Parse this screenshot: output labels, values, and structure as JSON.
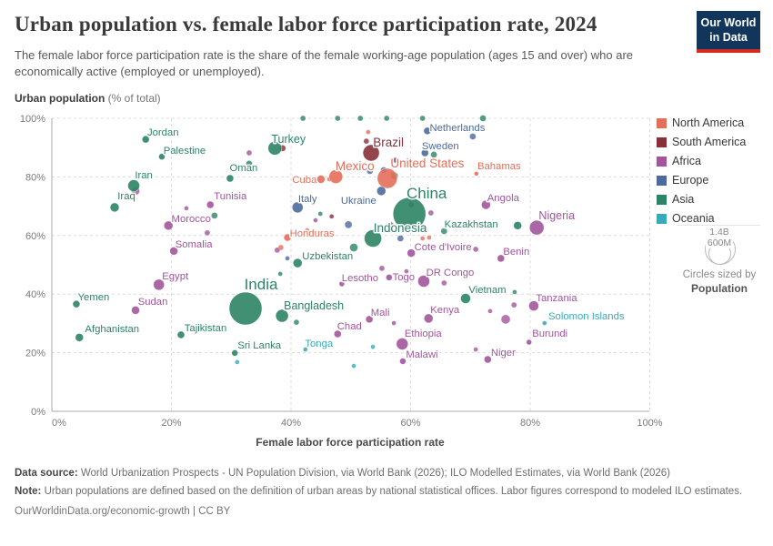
{
  "header": {
    "title": "Urban population vs. female labor force participation rate, 2024",
    "subtitle": "The female labor force participation rate is the share of the female working-age population (ages 15 and over) who are economically active (employed or unemployed)."
  },
  "logo": {
    "line1": "Our World",
    "line2": "in Data"
  },
  "axes": {
    "y_title_bold": "Urban population",
    "y_title_rest": " (% of total)",
    "x_title": "Female labor force participation rate"
  },
  "legend": {
    "items": [
      {
        "label": "North America",
        "color": "#e56e5a"
      },
      {
        "label": "South America",
        "color": "#883039"
      },
      {
        "label": "Africa",
        "color": "#a2559c"
      },
      {
        "label": "Europe",
        "color": "#4c6a9c"
      },
      {
        "label": "Asia",
        "color": "#2c8465"
      },
      {
        "label": "Oceania",
        "color": "#38aaba"
      }
    ]
  },
  "size_legend": {
    "outer_label": "1.4B",
    "inner_label": "600M",
    "caption_line1": "Circles sized by",
    "caption_line2": "Population"
  },
  "footer": {
    "source_label": "Data source:",
    "source_text": " World Urbanization Prospects - UN Population Division, via World Bank (2026); ILO Modelled Estimates, via World Bank (2026)",
    "note_label": "Note:",
    "note_text": " Urban populations are defined based on the definition of urban areas by national statistical offices. Labor figures correspond to modeled ILO estimates.",
    "link_text": "OurWorldinData.org/economic-growth | CC BY"
  },
  "chart_data": {
    "type": "scatter",
    "title": "Urban population vs. female labor force participation rate, 2024",
    "xlabel": "Female labor force participation rate",
    "ylabel": "Urban population (% of total)",
    "xlim": [
      0,
      100
    ],
    "ylim": [
      0,
      100
    ],
    "x_ticks": [
      {
        "v": 0,
        "label": "0%"
      },
      {
        "v": 20,
        "label": "20%"
      },
      {
        "v": 40,
        "label": "40%"
      },
      {
        "v": 60,
        "label": "60%"
      },
      {
        "v": 80,
        "label": "80%"
      },
      {
        "v": 100,
        "label": "100%"
      }
    ],
    "y_ticks": [
      {
        "v": 0,
        "label": "0%"
      },
      {
        "v": 20,
        "label": "20%"
      },
      {
        "v": 40,
        "label": "40%"
      },
      {
        "v": 60,
        "label": "60%"
      },
      {
        "v": 80,
        "label": "80%"
      },
      {
        "v": 100,
        "label": "100%"
      }
    ],
    "grid": "dashed",
    "legend_position": "right",
    "continent_colors": {
      "na": "#e56e5a",
      "sa": "#883039",
      "af": "#a2559c",
      "eu": "#4c6a9c",
      "as": "#2c8465",
      "oc": "#38aaba"
    },
    "points": [
      {
        "name": "Jordan",
        "x": 15.7,
        "y": 92.8,
        "r": 4,
        "c": "as",
        "ox": 19,
        "oy": -8
      },
      {
        "name": "Palestine",
        "x": 18.4,
        "y": 86.9,
        "r": 3.5,
        "c": "as",
        "ox": 25,
        "oy": -7
      },
      {
        "name": "Iran",
        "x": 13.7,
        "y": 77.0,
        "r": 6.5,
        "c": "as",
        "ox": 11,
        "oy": -12
      },
      {
        "name": "Iraq",
        "x": 10.5,
        "y": 69.6,
        "r": 5,
        "c": "as",
        "ox": 13,
        "oy": -13
      },
      {
        "name": "Oman",
        "x": 29.8,
        "y": 79.5,
        "r": 4,
        "c": "as",
        "ox": 15,
        "oy": -12
      },
      {
        "name": "Turkey",
        "x": 37.3,
        "y": 89.8,
        "r": 7.5,
        "c": "as",
        "ox": 15,
        "oy": -10,
        "ls": 12.5
      },
      {
        "name": "Tunisia",
        "x": 26.5,
        "y": 70.5,
        "r": 4,
        "c": "af",
        "ox": 22,
        "oy": -10
      },
      {
        "name": "Morocco",
        "x": 19.5,
        "y": 63.4,
        "r": 5,
        "c": "af",
        "ox": 25,
        "oy": -8
      },
      {
        "name": "Somalia",
        "x": 20.4,
        "y": 54.7,
        "r": 4.5,
        "c": "af",
        "ox": 22,
        "oy": -8
      },
      {
        "name": "Egypt",
        "x": 17.9,
        "y": 43.2,
        "r": 6,
        "c": "af",
        "ox": 18,
        "oy": -10
      },
      {
        "name": "Yemen",
        "x": 4.1,
        "y": 36.6,
        "r": 4,
        "c": "as",
        "ox": 19,
        "oy": -8
      },
      {
        "name": "Sudan",
        "x": 14.0,
        "y": 34.5,
        "r": 4.5,
        "c": "af",
        "ox": 19,
        "oy": -10
      },
      {
        "name": "Afghanistan",
        "x": 4.6,
        "y": 25.2,
        "r": 4.5,
        "c": "as",
        "ox": 36,
        "oy": -10
      },
      {
        "name": "Tajikistan",
        "x": 21.6,
        "y": 26.1,
        "r": 4,
        "c": "as",
        "ox": 27,
        "oy": -8
      },
      {
        "name": "India",
        "x": 32.4,
        "y": 35.1,
        "r": 18,
        "c": "as",
        "ox": 17,
        "oy": -25,
        "ls": 17
      },
      {
        "name": "Sri Lanka",
        "x": 30.6,
        "y": 19.9,
        "r": 3.5,
        "c": "as",
        "ox": 27,
        "oy": -9
      },
      {
        "name": "Bangladesh",
        "x": 38.5,
        "y": 32.6,
        "r": 7,
        "c": "as",
        "ox": 35,
        "oy": -11,
        "ls": 12.5
      },
      {
        "name": "Tonga",
        "x": 42.4,
        "y": 21.1,
        "r": 2.5,
        "c": "oc",
        "ox": 15,
        "oy": -7
      },
      {
        "name": "Chad",
        "x": 47.8,
        "y": 26.4,
        "r": 4,
        "c": "af",
        "ox": 13,
        "oy": -9
      },
      {
        "name": "Mali",
        "x": 53.1,
        "y": 31.4,
        "r": 4,
        "c": "af",
        "ox": 12,
        "oy": -8
      },
      {
        "name": "Ethiopia",
        "x": 58.6,
        "y": 23.0,
        "r": 6.5,
        "c": "af",
        "ox": 23,
        "oy": -12
      },
      {
        "name": "Malawi",
        "x": 58.7,
        "y": 17.1,
        "r": 3.5,
        "c": "af",
        "ox": 21,
        "oy": -8
      },
      {
        "name": "Niger",
        "x": 72.9,
        "y": 17.7,
        "r": 4,
        "c": "af",
        "ox": 17,
        "oy": -8
      },
      {
        "name": "Kenya",
        "x": 63.0,
        "y": 31.7,
        "r": 5,
        "c": "af",
        "ox": 18,
        "oy": -10
      },
      {
        "name": "Vietnam",
        "x": 69.2,
        "y": 38.5,
        "r": 5.5,
        "c": "as",
        "ox": 24,
        "oy": -10
      },
      {
        "name": "Tanzania",
        "x": 80.6,
        "y": 36.0,
        "r": 5.5,
        "c": "af",
        "ox": 25,
        "oy": -9
      },
      {
        "name": "Solomon Islands",
        "x": 82.4,
        "y": 30.1,
        "r": 2.5,
        "c": "oc",
        "ox": 46,
        "oy": -8
      },
      {
        "name": "Burundi",
        "x": 79.8,
        "y": 23.6,
        "r": 3,
        "c": "af",
        "ox": 23,
        "oy": -10
      },
      {
        "name": "DR Congo",
        "x": 62.2,
        "y": 44.4,
        "r": 6.5,
        "c": "af",
        "ox": 29,
        "oy": -10
      },
      {
        "name": "Lesotho",
        "x": 48.5,
        "y": 43.5,
        "r": 3,
        "c": "af",
        "ox": 20,
        "oy": -7
      },
      {
        "name": "Togo",
        "x": 56.4,
        "y": 45.7,
        "r": 3.5,
        "c": "af",
        "ox": 16,
        "oy": -1
      },
      {
        "name": "Uzbekistan",
        "x": 41.1,
        "y": 50.6,
        "r": 5,
        "c": "as",
        "ox": 33,
        "oy": -8
      },
      {
        "name": "Honduras",
        "x": 39.4,
        "y": 59.3,
        "r": 4,
        "c": "na",
        "ox": 27,
        "oy": -5
      },
      {
        "name": "Cuba",
        "x": 45.0,
        "y": 79.2,
        "r": 4.5,
        "c": "na",
        "ox": -18,
        "oy": 0
      },
      {
        "name": "Italy",
        "x": 41.1,
        "y": 69.6,
        "r": 6,
        "c": "eu",
        "ox": 11,
        "oy": -10
      },
      {
        "name": "Ukraine",
        "x": 55.1,
        "y": 75.2,
        "r": 5,
        "c": "eu",
        "ox": -25,
        "oy": 10
      },
      {
        "name": "Mexico",
        "x": 47.5,
        "y": 80.1,
        "r": 7.5,
        "c": "na",
        "ox": 21,
        "oy": -11,
        "ls": 13.5
      },
      {
        "name": "Brazil",
        "x": 53.4,
        "y": 88.2,
        "r": 9,
        "c": "sa",
        "ox": 19,
        "oy": -11,
        "ls": 13.5
      },
      {
        "name": "United States",
        "x": 56.1,
        "y": 79.5,
        "r": 11,
        "c": "na",
        "ox": 44,
        "oy": -16,
        "ls": 13.5
      },
      {
        "name": "Netherlands",
        "x": 62.8,
        "y": 95.7,
        "r": 4,
        "c": "eu",
        "ox": 33,
        "oy": -4
      },
      {
        "name": "Sweden",
        "x": 62.4,
        "y": 88.2,
        "r": 4,
        "c": "eu",
        "ox": 17,
        "oy": -8
      },
      {
        "name": "Bahamas",
        "x": 71.0,
        "y": 81.1,
        "r": 2.5,
        "c": "na",
        "ox": 25,
        "oy": -9
      },
      {
        "name": "China",
        "x": 59.8,
        "y": 67.4,
        "r": 18,
        "c": "as",
        "ox": 19,
        "oy": -21,
        "ls": 17
      },
      {
        "name": "Indonesia",
        "x": 53.7,
        "y": 59.0,
        "r": 9.5,
        "c": "as",
        "ox": 30,
        "oy": -11,
        "ls": 13.5
      },
      {
        "name": "Kazakhstan",
        "x": 77.9,
        "y": 63.4,
        "r": 4.5,
        "c": "as",
        "ox": -51,
        "oy": -2
      },
      {
        "name": "Angola",
        "x": 72.6,
        "y": 70.5,
        "r": 5,
        "c": "af",
        "ox": 19,
        "oy": -8
      },
      {
        "name": "Nigeria",
        "x": 81.1,
        "y": 62.7,
        "r": 8,
        "c": "af",
        "ox": 22,
        "oy": -13,
        "ls": 12.5
      },
      {
        "name": "Benin",
        "x": 75.1,
        "y": 52.2,
        "r": 4,
        "c": "af",
        "ox": 17,
        "oy": -8
      },
      {
        "name": "Cote d'Ivoire",
        "x": 60.1,
        "y": 54.0,
        "r": 4.5,
        "c": "af",
        "ox": 35,
        "oy": -7
      }
    ],
    "background_points": [
      {
        "x": 33.0,
        "y": 84.5,
        "r": 3.5,
        "c": "as"
      },
      {
        "x": 33.0,
        "y": 88.2,
        "r": 3,
        "c": "af"
      },
      {
        "x": 22.5,
        "y": 69.3,
        "r": 2.5,
        "c": "af"
      },
      {
        "x": 26.0,
        "y": 60.9,
        "r": 3,
        "c": "af"
      },
      {
        "x": 27.2,
        "y": 66.8,
        "r": 3.5,
        "c": "as"
      },
      {
        "x": 42.0,
        "y": 100,
        "r": 3,
        "c": "as"
      },
      {
        "x": 47.8,
        "y": 100,
        "r": 3,
        "c": "as"
      },
      {
        "x": 51.6,
        "y": 100,
        "r": 3,
        "c": "as"
      },
      {
        "x": 56.0,
        "y": 100,
        "r": 3,
        "c": "as"
      },
      {
        "x": 62.0,
        "y": 100,
        "r": 3,
        "c": "as"
      },
      {
        "x": 72.1,
        "y": 100,
        "r": 3.5,
        "c": "as"
      },
      {
        "x": 70.4,
        "y": 93.8,
        "r": 3.5,
        "c": "eu"
      },
      {
        "x": 52.9,
        "y": 95.3,
        "r": 2.5,
        "c": "na"
      },
      {
        "x": 52.6,
        "y": 92.2,
        "r": 3,
        "c": "sa"
      },
      {
        "x": 38.6,
        "y": 89.8,
        "r": 3.5,
        "c": "sa"
      },
      {
        "x": 57.5,
        "y": 85.7,
        "r": 3,
        "c": "sa"
      },
      {
        "x": 55.5,
        "y": 82.3,
        "r": 3.5,
        "c": "eu"
      },
      {
        "x": 57.3,
        "y": 80.4,
        "r": 4,
        "c": "as"
      },
      {
        "x": 53.2,
        "y": 82.0,
        "r": 3.5,
        "c": "eu"
      },
      {
        "x": 63.9,
        "y": 87.6,
        "r": 3.5,
        "c": "as"
      },
      {
        "x": 65.4,
        "y": 90.4,
        "r": 3,
        "c": "eu"
      },
      {
        "x": 46.4,
        "y": 79.2,
        "r": 2.5,
        "c": "na"
      },
      {
        "x": 51.1,
        "y": 71.4,
        "r": 3,
        "c": "af"
      },
      {
        "x": 49.6,
        "y": 63.7,
        "r": 4,
        "c": "eu"
      },
      {
        "x": 46.8,
        "y": 66.5,
        "r": 2.5,
        "c": "sa"
      },
      {
        "x": 56.7,
        "y": 63.7,
        "r": 3,
        "c": "af"
      },
      {
        "x": 58.3,
        "y": 59.0,
        "r": 3.5,
        "c": "eu"
      },
      {
        "x": 60.1,
        "y": 70.5,
        "r": 3,
        "c": "sa"
      },
      {
        "x": 63.4,
        "y": 67.7,
        "r": 3,
        "c": "af"
      },
      {
        "x": 62.0,
        "y": 59.0,
        "r": 2.5,
        "c": "na"
      },
      {
        "x": 63.1,
        "y": 59.3,
        "r": 2.5,
        "c": "na"
      },
      {
        "x": 65.6,
        "y": 61.5,
        "r": 3.5,
        "c": "as"
      },
      {
        "x": 50.5,
        "y": 55.9,
        "r": 4.5,
        "c": "as"
      },
      {
        "x": 42.7,
        "y": 61.8,
        "r": 2.5,
        "c": "na"
      },
      {
        "x": 46.2,
        "y": 60.6,
        "r": 2.5,
        "c": "na"
      },
      {
        "x": 44.1,
        "y": 65.2,
        "r": 2.5,
        "c": "af"
      },
      {
        "x": 44.9,
        "y": 67.4,
        "r": 2.5,
        "c": "as"
      },
      {
        "x": 39.4,
        "y": 52.2,
        "r": 2.5,
        "c": "eu"
      },
      {
        "x": 55.2,
        "y": 48.8,
        "r": 3,
        "c": "af"
      },
      {
        "x": 65.6,
        "y": 43.8,
        "r": 3,
        "c": "af"
      },
      {
        "x": 73.3,
        "y": 34.2,
        "r": 2.5,
        "c": "af"
      },
      {
        "x": 75.9,
        "y": 31.4,
        "r": 5,
        "c": "af"
      },
      {
        "x": 77.3,
        "y": 36.3,
        "r": 3,
        "c": "af"
      },
      {
        "x": 77.4,
        "y": 40.7,
        "r": 2.5,
        "c": "as"
      },
      {
        "x": 70.9,
        "y": 21.1,
        "r": 2.5,
        "c": "af"
      },
      {
        "x": 53.7,
        "y": 22.0,
        "r": 2.5,
        "c": "oc"
      },
      {
        "x": 50.5,
        "y": 15.5,
        "r": 2.5,
        "c": "oc"
      },
      {
        "x": 31.0,
        "y": 16.8,
        "r": 2.5,
        "c": "oc"
      },
      {
        "x": 40.9,
        "y": 30.4,
        "r": 3,
        "c": "as"
      },
      {
        "x": 57.2,
        "y": 30.1,
        "r": 2.5,
        "c": "af"
      },
      {
        "x": 59.3,
        "y": 47.8,
        "r": 2.5,
        "c": "af"
      },
      {
        "x": 38.2,
        "y": 46.9,
        "r": 2.5,
        "c": "as"
      },
      {
        "x": 38.3,
        "y": 55.9,
        "r": 3,
        "c": "na"
      },
      {
        "x": 37.7,
        "y": 55.0,
        "r": 3,
        "c": "af"
      },
      {
        "x": 14.0,
        "y": 75.2,
        "r": 4.5,
        "c": "af"
      },
      {
        "x": 70.9,
        "y": 55.3,
        "r": 3,
        "c": "af"
      }
    ]
  }
}
